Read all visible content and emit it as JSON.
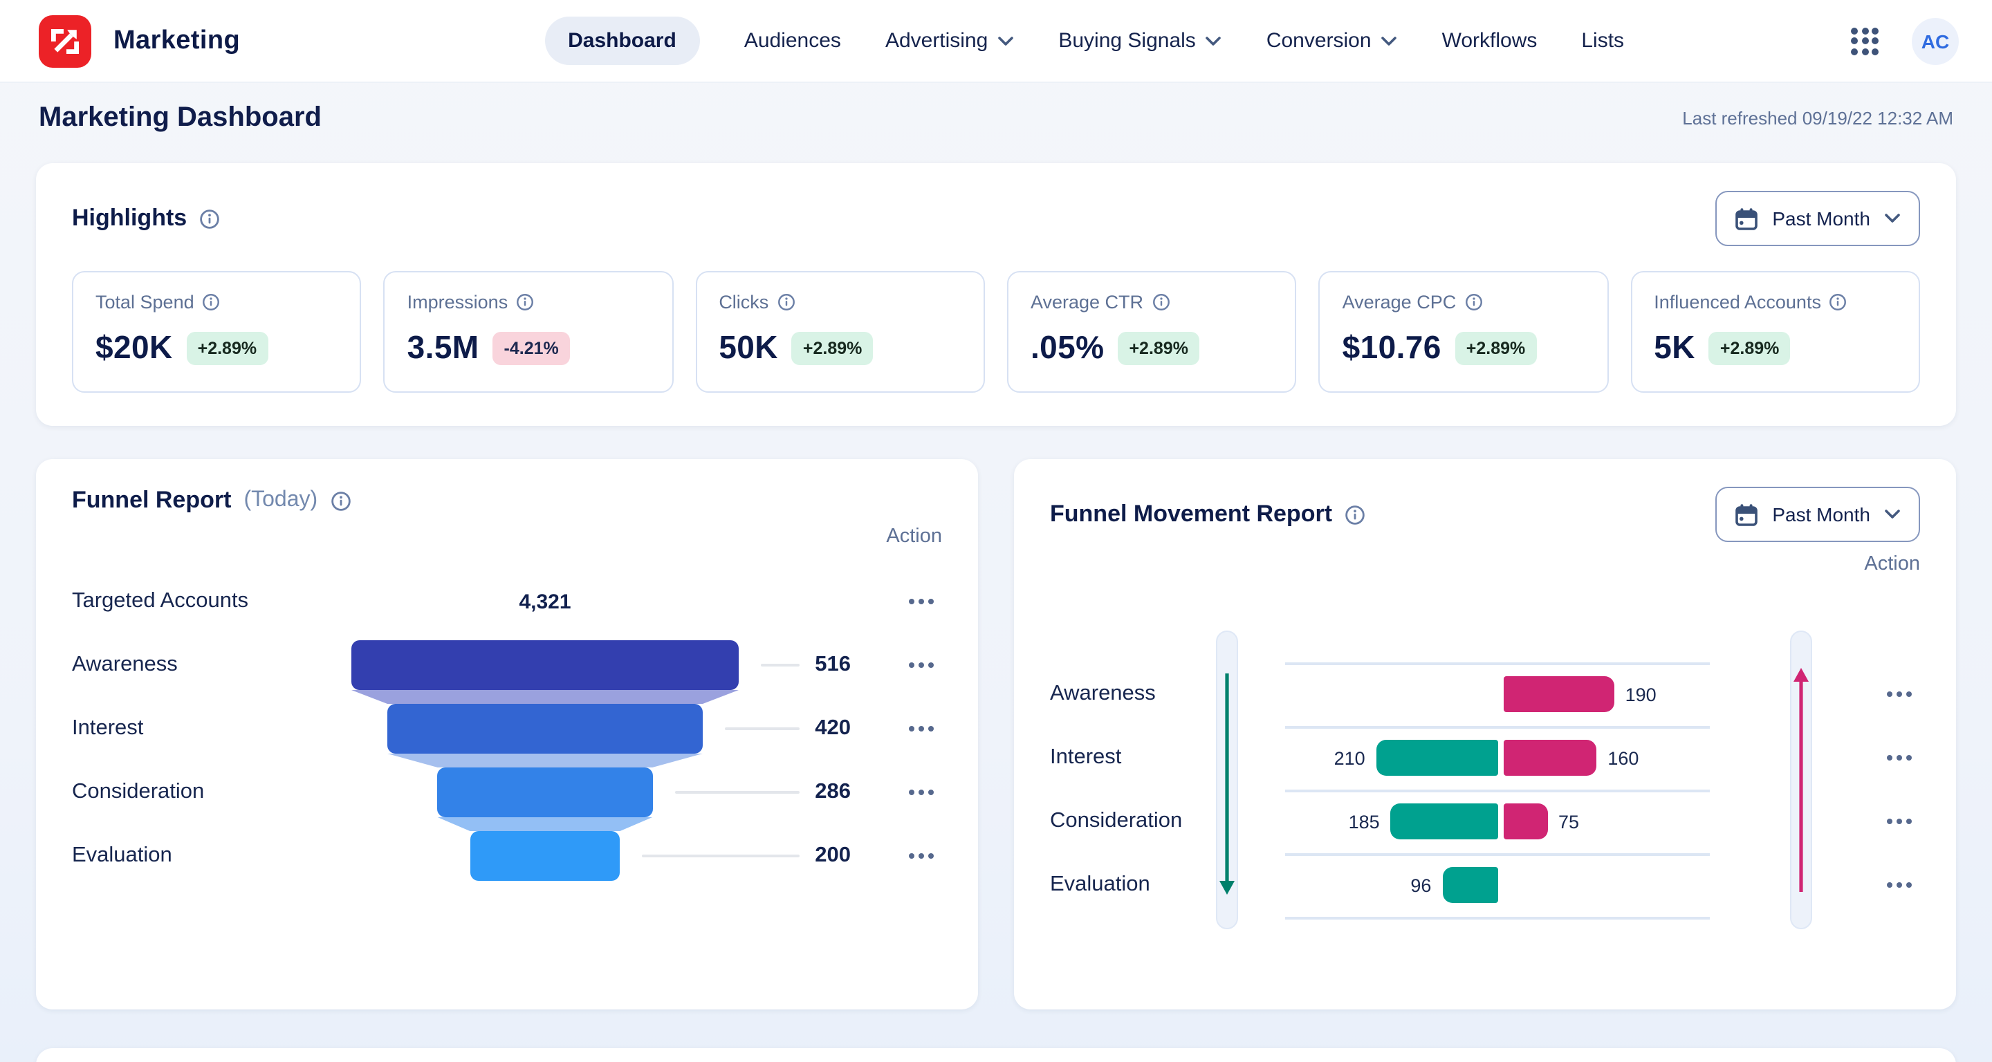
{
  "brand": {
    "name": "Marketing"
  },
  "nav": {
    "items": [
      {
        "label": "Dashboard",
        "active": true,
        "dropdown": false
      },
      {
        "label": "Audiences",
        "active": false,
        "dropdown": false
      },
      {
        "label": "Advertising",
        "active": false,
        "dropdown": true
      },
      {
        "label": "Buying Signals",
        "active": false,
        "dropdown": true
      },
      {
        "label": "Conversion",
        "active": false,
        "dropdown": true
      },
      {
        "label": "Workflows",
        "active": false,
        "dropdown": false
      },
      {
        "label": "Lists",
        "active": false,
        "dropdown": false
      }
    ],
    "avatar_initials": "AC"
  },
  "page": {
    "title": "Marketing Dashboard",
    "last_refreshed": "Last refreshed 09/19/22 12:32 AM"
  },
  "highlights": {
    "title": "Highlights",
    "period": "Past Month",
    "cards": [
      {
        "label": "Total Spend",
        "value": "$20K",
        "change": "+2.89%",
        "direction": "up"
      },
      {
        "label": "Impressions",
        "value": "3.5M",
        "change": "-4.21%",
        "direction": "down"
      },
      {
        "label": "Clicks",
        "value": "50K",
        "change": "+2.89%",
        "direction": "up"
      },
      {
        "label": "Average CTR",
        "value": ".05%",
        "change": "+2.89%",
        "direction": "up"
      },
      {
        "label": "Average CPC",
        "value": "$10.76",
        "change": "+2.89%",
        "direction": "up"
      },
      {
        "label": "Influenced Accounts",
        "value": "5K",
        "change": "+2.89%",
        "direction": "up"
      }
    ]
  },
  "funnel_report": {
    "title": "Funnel Report",
    "subtitle": "(Today)",
    "action_header": "Action"
  },
  "funnel_movement": {
    "title": "Funnel Movement Report",
    "period": "Past Month",
    "action_header": "Action"
  },
  "colors": {
    "brand_red": "#EC2227",
    "navy_text": "#0E1C49",
    "positive_badge_bg": "#D9F3E6",
    "negative_badge_bg": "#F9D4DC",
    "teal": "#00A18F",
    "teal_arrow": "#00806B",
    "pink": "#D02573",
    "funnel_bars": [
      "#333FAF",
      "#3365D2",
      "#3382E8",
      "#2F9AF8"
    ],
    "funnel_transitions": [
      "#9AA1DE",
      "#A5BFEE",
      "#93BFF5"
    ]
  },
  "chart_data": [
    {
      "id": "funnel_report",
      "type": "funnel",
      "title": "Funnel Report",
      "period": "Today",
      "stages": [
        "Targeted Accounts",
        "Awareness",
        "Interest",
        "Consideration",
        "Evaluation"
      ],
      "values": [
        4321,
        516,
        420,
        286,
        200
      ],
      "display_values": [
        "4,321",
        "516",
        "420",
        "286",
        "200"
      ],
      "notes": "Targeted Accounts shown as number only; Awareness-Evaluation drawn as centered funnel bars"
    },
    {
      "id": "funnel_movement",
      "type": "bar",
      "subtype": "horizontal-diverging",
      "categories": [
        "Awareness",
        "Interest",
        "Consideration",
        "Evaluation"
      ],
      "series": [
        {
          "name": "moved-left",
          "color": "#00A18F",
          "side": "left",
          "values": [
            null,
            210,
            185,
            96
          ]
        },
        {
          "name": "moved-right",
          "color": "#D02573",
          "side": "right",
          "values": [
            190,
            160,
            75,
            null
          ]
        }
      ],
      "annotations": {
        "left_axis_arrow": "down",
        "right_axis_arrow": "up"
      },
      "grid": true,
      "legend": false
    }
  ]
}
